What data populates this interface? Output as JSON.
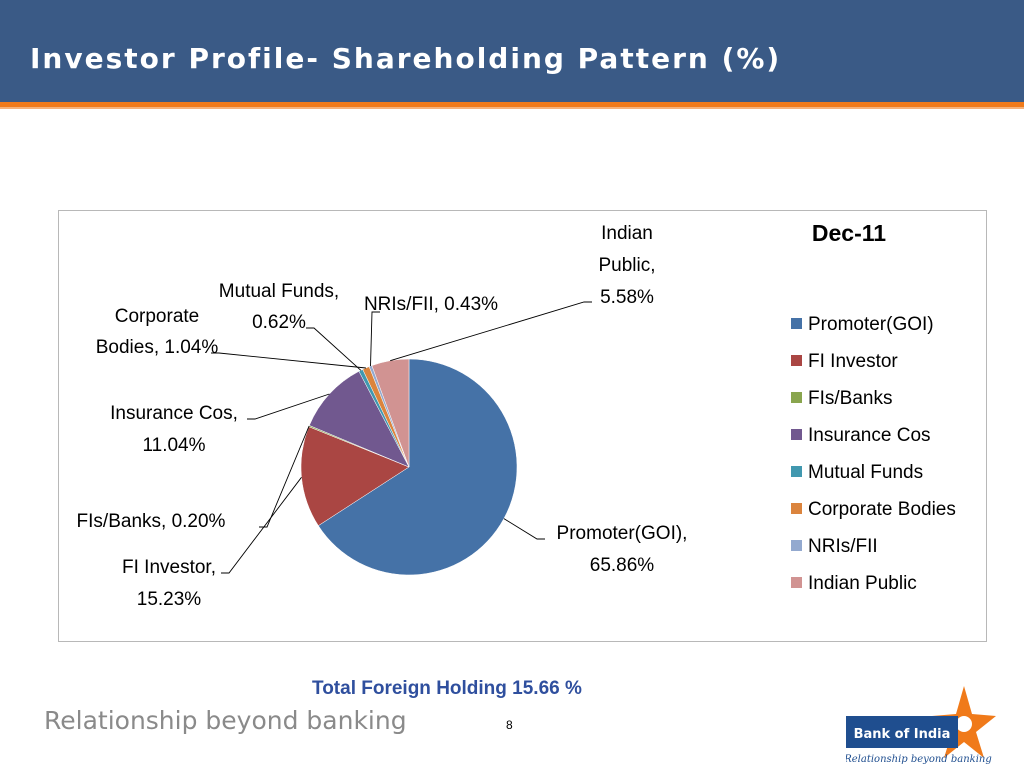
{
  "header": {
    "title": "Investor Profile- Shareholding Pattern (%)"
  },
  "chart_data": {
    "type": "pie",
    "title": "Dec-11",
    "legend_position": "right",
    "categories": [
      "Promoter(GOI)",
      "FI Investor",
      "FIs/Banks",
      "Insurance Cos",
      "Mutual Funds",
      "Corporate Bodies",
      "NRIs/FII",
      "Indian Public"
    ],
    "values": [
      65.86,
      15.23,
      0.2,
      11.04,
      0.62,
      1.04,
      0.43,
      5.58
    ],
    "colors": [
      "#4572a7",
      "#aa4643",
      "#89a54e",
      "#71588f",
      "#4198af",
      "#db843d",
      "#93a9cf",
      "#d19392"
    ],
    "data_labels": [
      [
        "Promoter(GOI),",
        "65.86%"
      ],
      [
        "FI Investor,",
        "15.23%"
      ],
      [
        "FIs/Banks, 0.20%"
      ],
      [
        "Insurance Cos,",
        "11.04%"
      ],
      [
        "Mutual Funds,",
        "0.62%"
      ],
      [
        "Corporate",
        "Bodies, 1.04%"
      ],
      [
        "NRIs/FII, 0.43%"
      ],
      [
        "Indian",
        "Public,",
        "5.58%"
      ]
    ]
  },
  "footer": {
    "note": "Total Foreign Holding 15.66 %",
    "tagline": "Relationship beyond banking",
    "page_number": "8"
  },
  "logo": {
    "name": "Bank of India",
    "tagline": "Relationship beyond banking",
    "colors": {
      "blue": "#1f4e8f",
      "orange": "#f07a1a"
    }
  }
}
